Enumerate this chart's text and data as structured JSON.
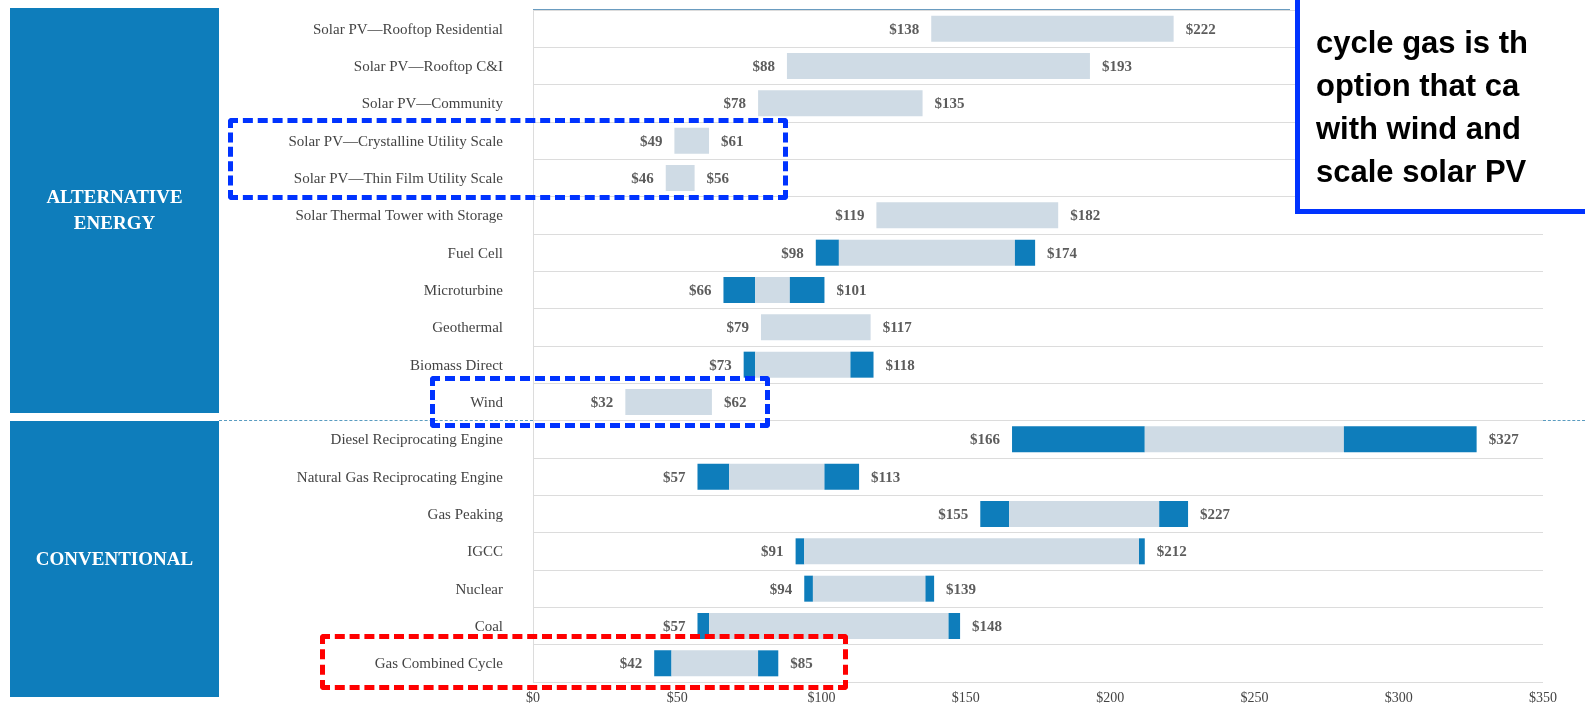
{
  "chart_data": {
    "type": "bar",
    "orientation": "horizontal",
    "categories": [
      "Solar PV—Rooftop Residential",
      "Solar PV—Rooftop C&I",
      "Solar PV—Community",
      "Solar PV—Crystalline Utility Scale",
      "Solar PV—Thin Film Utility Scale",
      "Solar Thermal Tower with Storage",
      "Fuel Cell",
      "Microturbine",
      "Geothermal",
      "Biomass Direct",
      "Wind",
      "Diesel Reciprocating Engine",
      "Natural Gas Reciprocating Engine",
      "Gas Peaking",
      "IGCC",
      "Nuclear",
      "Coal",
      "Gas Combined Cycle"
    ],
    "series": [
      {
        "color": "#0e7dbb",
        "base": [
          null,
          null,
          null,
          null,
          null,
          null,
          98,
          66,
          null,
          73,
          null,
          166,
          57,
          155,
          91,
          94,
          57,
          42
        ],
        "values": [
          null,
          null,
          null,
          null,
          null,
          null,
          8,
          11,
          null,
          4,
          null,
          46,
          11,
          10,
          3,
          3,
          4,
          6
        ]
      },
      {
        "color": "#cfdbe5",
        "base": [
          138,
          88,
          78,
          49,
          46,
          119,
          106,
          77,
          79,
          77,
          32,
          212,
          68,
          165,
          94,
          97,
          61,
          48
        ],
        "values": [
          84,
          105,
          57,
          12,
          10,
          63,
          61,
          12,
          38,
          33,
          30,
          69,
          33,
          52,
          116,
          39,
          83,
          30
        ]
      },
      {
        "color": "#0e7dbb",
        "base": [
          null,
          null,
          null,
          null,
          null,
          null,
          167,
          89,
          null,
          110,
          null,
          281,
          101,
          217,
          210,
          136,
          144,
          78
        ],
        "values": [
          null,
          null,
          null,
          null,
          null,
          null,
          7,
          12,
          null,
          8,
          null,
          46,
          12,
          10,
          2,
          3,
          4,
          7
        ]
      }
    ],
    "xlim": [
      0,
      350
    ],
    "xticks": [
      {
        "value": 0,
        "label": "$0"
      },
      {
        "value": 50,
        "label": "$50"
      },
      {
        "value": 100,
        "label": "$100"
      },
      {
        "value": 150,
        "label": "$150"
      },
      {
        "value": 200,
        "label": "$200"
      },
      {
        "value": 250,
        "label": "$250"
      },
      {
        "value": 300,
        "label": "$300"
      },
      {
        "value": 350,
        "label": "$350"
      }
    ],
    "grid": "y",
    "annotations": [
      "ALTERNATIVE\nENERGY",
      "CONVENTIONAL",
      "cycle gas is th\noption that ca\nwith wind and\nscale solar PV",
      "$138",
      "$222",
      "$88",
      "$193",
      "$78",
      "$135",
      "$49",
      "$61",
      "$46",
      "$56",
      "$119",
      "$182",
      "$98",
      "$174",
      "$66",
      "$101",
      "$79",
      "$117",
      "$73",
      "$118",
      "$32",
      "$62",
      "$166",
      "$327",
      "$57",
      "$113",
      "$155",
      "$227",
      "$91",
      "$212",
      "$94",
      "$139",
      "$57",
      "$148",
      "$42",
      "$85"
    ]
  }
}
